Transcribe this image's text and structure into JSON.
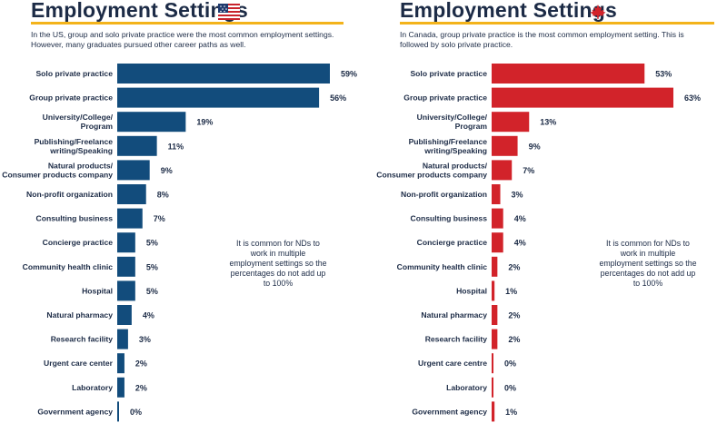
{
  "colors": {
    "title": "#1c2b46",
    "rule": "#f3b31b",
    "us_bar": "#124c7c",
    "ca_bar": "#d2232a"
  },
  "us": {
    "title": "Employment Settings",
    "flag_icon": "us-flag-icon",
    "subtitle": "In the US, group and solo private practice were the most common employment settings. However, many graduates pursued other career paths as well.",
    "note": "It is common for NDs to work in multiple employment settings so the percentages do not add up to 100%"
  },
  "ca": {
    "title": "Employment Settings",
    "flag_icon": "maple-leaf-icon",
    "subtitle": "In Canada, group private practice is the most common employment setting. This is followed by solo private practice.",
    "note": "It is common for NDs to work in multiple employment settings so the percentages do not add up to 100%"
  },
  "chart_data": [
    {
      "type": "bar",
      "orientation": "horizontal",
      "color": "#124c7c",
      "categories": [
        [
          "Solo private practice"
        ],
        [
          "Group private practice"
        ],
        [
          "University/College/",
          "Program"
        ],
        [
          "Publishing/Freelance",
          "writing/Speaking"
        ],
        [
          "Natural products/",
          "Consumer products company"
        ],
        [
          "Non-profit organization"
        ],
        [
          "Consulting business"
        ],
        [
          "Concierge practice"
        ],
        [
          "Community health clinic"
        ],
        [
          "Hospital"
        ],
        [
          "Natural pharmacy"
        ],
        [
          "Research facility"
        ],
        [
          "Urgent care center"
        ],
        [
          "Laboratory"
        ],
        [
          "Government agency"
        ]
      ],
      "values": [
        59,
        56,
        19,
        11,
        9,
        8,
        7,
        5,
        5,
        5,
        4,
        3,
        2,
        2,
        0
      ],
      "value_suffix": "%"
    },
    {
      "type": "bar",
      "orientation": "horizontal",
      "color": "#d2232a",
      "categories": [
        [
          "Solo private practice"
        ],
        [
          "Group private practice"
        ],
        [
          "University/College/",
          "Program"
        ],
        [
          "Publishing/Freelance",
          "writing/Speaking"
        ],
        [
          "Natural products/",
          "Consumer products company"
        ],
        [
          "Non-profit organization"
        ],
        [
          "Consulting business"
        ],
        [
          "Concierge practice"
        ],
        [
          "Community health clinic"
        ],
        [
          "Hospital"
        ],
        [
          "Natural pharmacy"
        ],
        [
          "Research facility"
        ],
        [
          "Urgent care centre"
        ],
        [
          "Laboratory"
        ],
        [
          "Government agency"
        ]
      ],
      "values": [
        53,
        63,
        13,
        9,
        7,
        3,
        4,
        4,
        2,
        1,
        2,
        2,
        0,
        0,
        1
      ],
      "value_suffix": "%"
    }
  ]
}
